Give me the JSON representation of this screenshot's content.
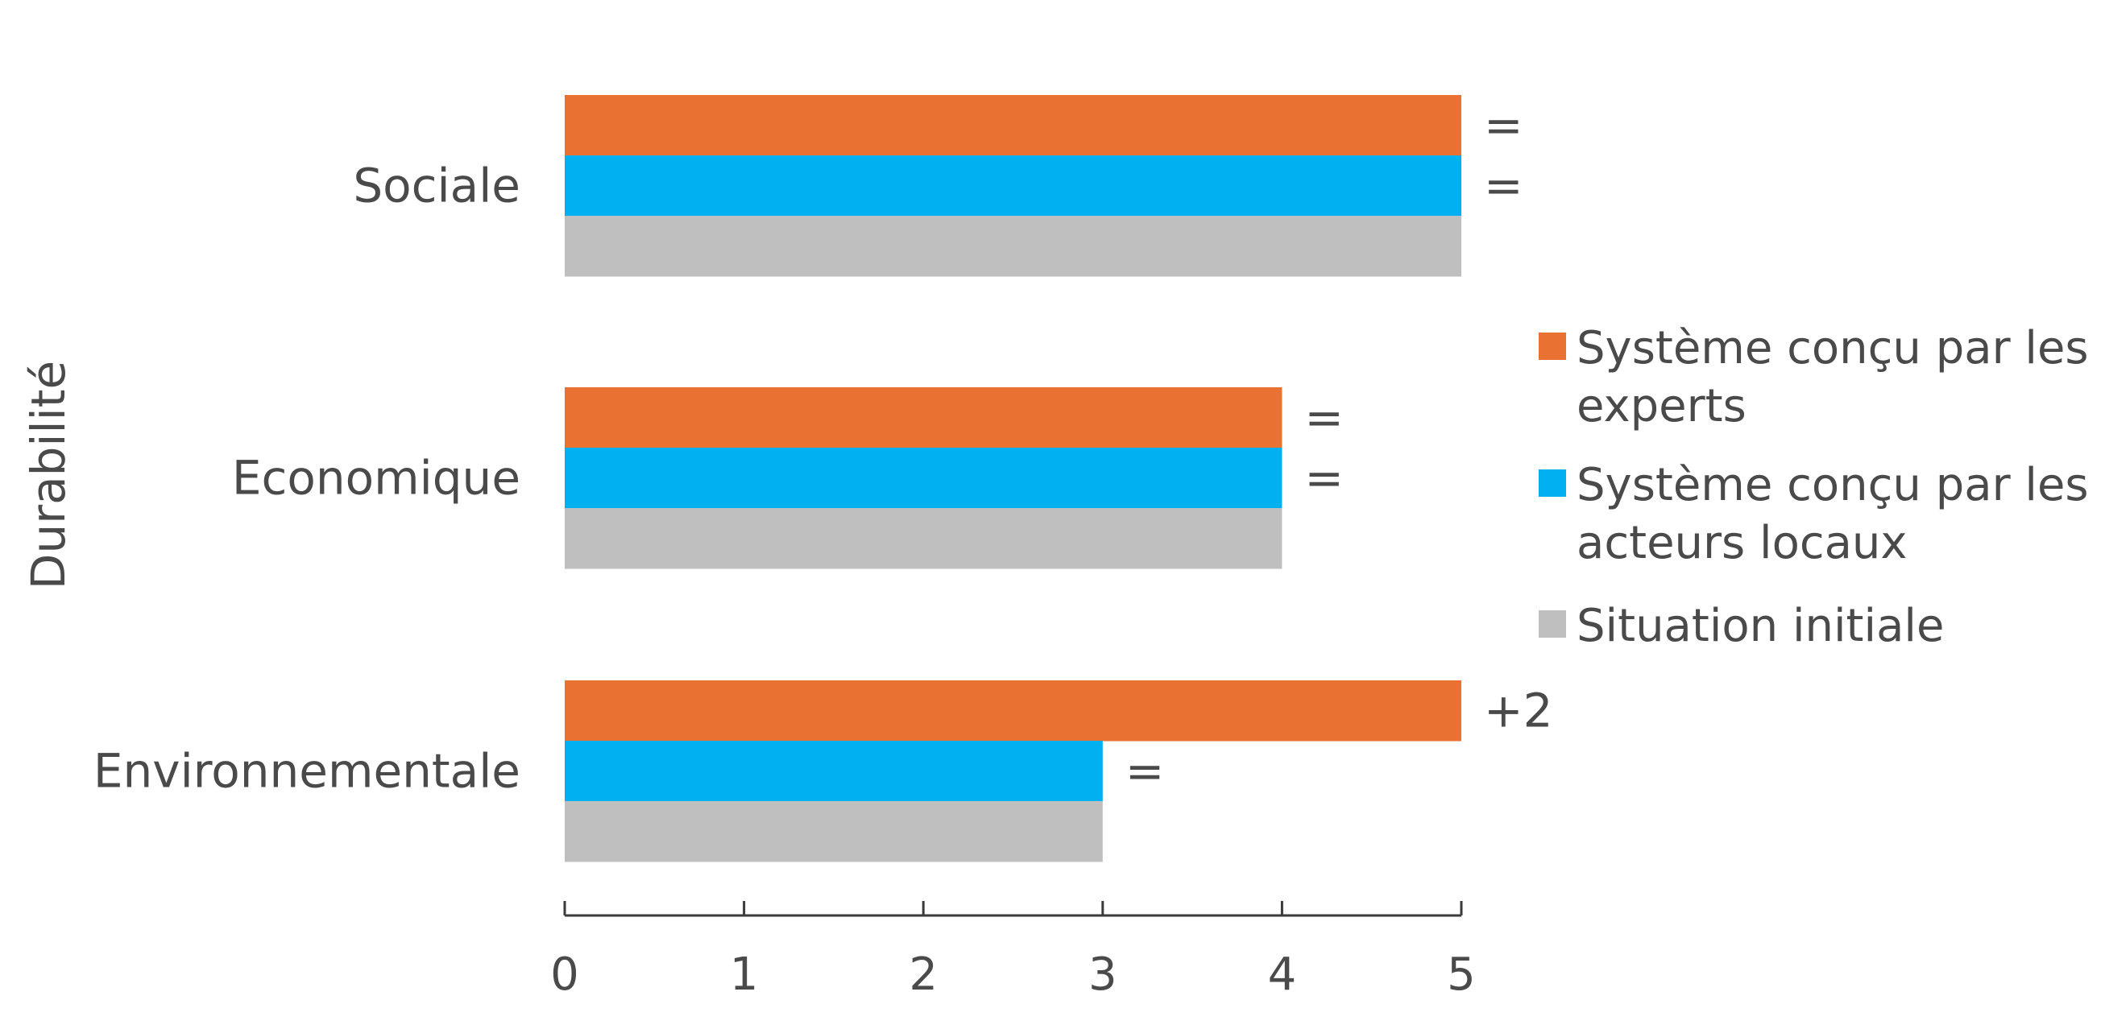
{
  "chart_data": {
    "type": "bar",
    "orientation": "horizontal",
    "title": "",
    "xlabel": "",
    "ylabel": "Durabilité",
    "xlim": [
      0,
      5
    ],
    "xticks": [
      "0",
      "1",
      "2",
      "3",
      "4",
      "5"
    ],
    "grid": false,
    "legend_position": "right",
    "categories": [
      "Sociale",
      "Economique",
      "Environnementale"
    ],
    "series": [
      {
        "name": "Système conçu par les experts",
        "color": "#E97132",
        "values": [
          5,
          4,
          5
        ],
        "annotations": [
          "=",
          "=",
          "+2"
        ]
      },
      {
        "name": "Système conçu par les acteurs locaux",
        "color": "#00B0F0",
        "values": [
          5,
          4,
          3
        ],
        "annotations": [
          "=",
          "=",
          "="
        ]
      },
      {
        "name": "Situation initiale",
        "color": "#BFBFBF",
        "values": [
          5,
          4,
          3
        ],
        "annotations": [
          "",
          "",
          ""
        ]
      }
    ],
    "legend": [
      {
        "lines": [
          "Système conçu par les",
          "experts"
        ],
        "color": "#E97132"
      },
      {
        "lines": [
          "Système conçu par les",
          "acteurs locaux"
        ],
        "color": "#00B0F0"
      },
      {
        "lines": [
          "Situation initiale"
        ],
        "color": "#BFBFBF"
      }
    ]
  }
}
